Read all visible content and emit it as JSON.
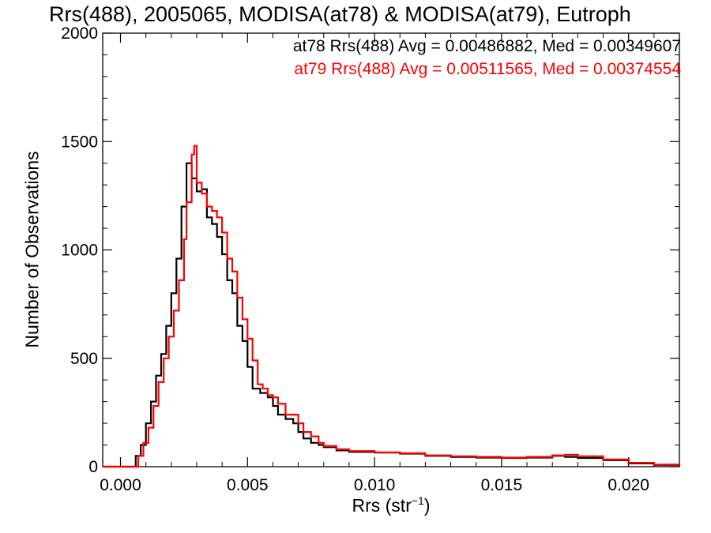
{
  "title": "Rrs(488), 2005065, MODISA(at78) & MODISA(at79), Eutroph",
  "annotations": [
    {
      "text": "at78 Rrs(488) Avg = 0.00486882, Med = 0.00349607",
      "color": "#000000"
    },
    {
      "text": "at79 Rrs(488) Avg = 0.00511565, Med = 0.00374554",
      "color": "#ff0000"
    }
  ],
  "chart_data": {
    "type": "line",
    "title": "Rrs(488), 2005065, MODISA(at78) & MODISA(at79), Eutroph",
    "xlabel_main": "Rrs (str",
    "xlabel_sup": "−1",
    "xlabel_close": ")",
    "ylabel": "Number of Observations",
    "xlim": [
      -0.0007,
      0.022
    ],
    "ylim": [
      0,
      2000
    ],
    "x_ticks": [
      0.0,
      0.005,
      0.01,
      0.015,
      0.02
    ],
    "x_tick_labels": [
      "0.000",
      "0.005",
      "0.010",
      "0.015",
      "0.020"
    ],
    "y_ticks": [
      0,
      500,
      1000,
      1500,
      2000
    ],
    "y_tick_labels": [
      "0",
      "500",
      "1000",
      "1500",
      "2000"
    ],
    "grid": false,
    "step": true,
    "series": [
      {
        "name": "at78",
        "color": "#000000",
        "points": [
          [
            0.0003,
            0
          ],
          [
            0.0006,
            50
          ],
          [
            0.0008,
            100
          ],
          [
            0.001,
            200
          ],
          [
            0.0012,
            300
          ],
          [
            0.0014,
            420
          ],
          [
            0.0016,
            520
          ],
          [
            0.0018,
            650
          ],
          [
            0.002,
            800
          ],
          [
            0.0022,
            960
          ],
          [
            0.0024,
            1200
          ],
          [
            0.0026,
            1400
          ],
          [
            0.0028,
            1330
          ],
          [
            0.003,
            1270
          ],
          [
            0.0032,
            1280
          ],
          [
            0.0034,
            1150
          ],
          [
            0.0036,
            1120
          ],
          [
            0.0038,
            1060
          ],
          [
            0.004,
            980
          ],
          [
            0.0042,
            860
          ],
          [
            0.0044,
            800
          ],
          [
            0.0046,
            650
          ],
          [
            0.0048,
            580
          ],
          [
            0.005,
            460
          ],
          [
            0.0052,
            360
          ],
          [
            0.0055,
            340
          ],
          [
            0.0058,
            320
          ],
          [
            0.006,
            280
          ],
          [
            0.0062,
            240
          ],
          [
            0.0065,
            220
          ],
          [
            0.0068,
            200
          ],
          [
            0.007,
            160
          ],
          [
            0.0072,
            130
          ],
          [
            0.0075,
            110
          ],
          [
            0.0078,
            100
          ],
          [
            0.008,
            90
          ],
          [
            0.0085,
            75
          ],
          [
            0.009,
            68
          ],
          [
            0.01,
            65
          ],
          [
            0.011,
            60
          ],
          [
            0.012,
            50
          ],
          [
            0.013,
            45
          ],
          [
            0.014,
            42
          ],
          [
            0.015,
            40
          ],
          [
            0.016,
            42
          ],
          [
            0.017,
            50
          ],
          [
            0.0175,
            45
          ],
          [
            0.018,
            40
          ],
          [
            0.019,
            30
          ],
          [
            0.02,
            15
          ],
          [
            0.021,
            8
          ],
          [
            0.022,
            3
          ]
        ]
      },
      {
        "name": "at79",
        "color": "#ff0000",
        "points": [
          [
            0.0004,
            0
          ],
          [
            0.0007,
            50
          ],
          [
            0.0009,
            110
          ],
          [
            0.0011,
            180
          ],
          [
            0.0013,
            280
          ],
          [
            0.0015,
            390
          ],
          [
            0.0017,
            500
          ],
          [
            0.0019,
            600
          ],
          [
            0.0021,
            720
          ],
          [
            0.0023,
            860
          ],
          [
            0.0025,
            1050
          ],
          [
            0.0026,
            1220
          ],
          [
            0.0028,
            1440
          ],
          [
            0.0029,
            1480
          ],
          [
            0.003,
            1310
          ],
          [
            0.0032,
            1260
          ],
          [
            0.0034,
            1200
          ],
          [
            0.0036,
            1180
          ],
          [
            0.0038,
            1150
          ],
          [
            0.004,
            1080
          ],
          [
            0.0042,
            960
          ],
          [
            0.0044,
            900
          ],
          [
            0.0046,
            780
          ],
          [
            0.0048,
            680
          ],
          [
            0.005,
            590
          ],
          [
            0.0052,
            490
          ],
          [
            0.0054,
            380
          ],
          [
            0.0056,
            360
          ],
          [
            0.0058,
            330
          ],
          [
            0.006,
            320
          ],
          [
            0.0062,
            290
          ],
          [
            0.0065,
            240
          ],
          [
            0.0068,
            240
          ],
          [
            0.007,
            200
          ],
          [
            0.0072,
            160
          ],
          [
            0.0075,
            140
          ],
          [
            0.0078,
            110
          ],
          [
            0.008,
            95
          ],
          [
            0.0085,
            80
          ],
          [
            0.009,
            72
          ],
          [
            0.01,
            66
          ],
          [
            0.011,
            62
          ],
          [
            0.012,
            52
          ],
          [
            0.013,
            48
          ],
          [
            0.014,
            45
          ],
          [
            0.015,
            42
          ],
          [
            0.016,
            45
          ],
          [
            0.017,
            52
          ],
          [
            0.0175,
            55
          ],
          [
            0.018,
            48
          ],
          [
            0.019,
            33
          ],
          [
            0.02,
            18
          ],
          [
            0.021,
            10
          ],
          [
            0.022,
            5
          ]
        ]
      }
    ]
  }
}
